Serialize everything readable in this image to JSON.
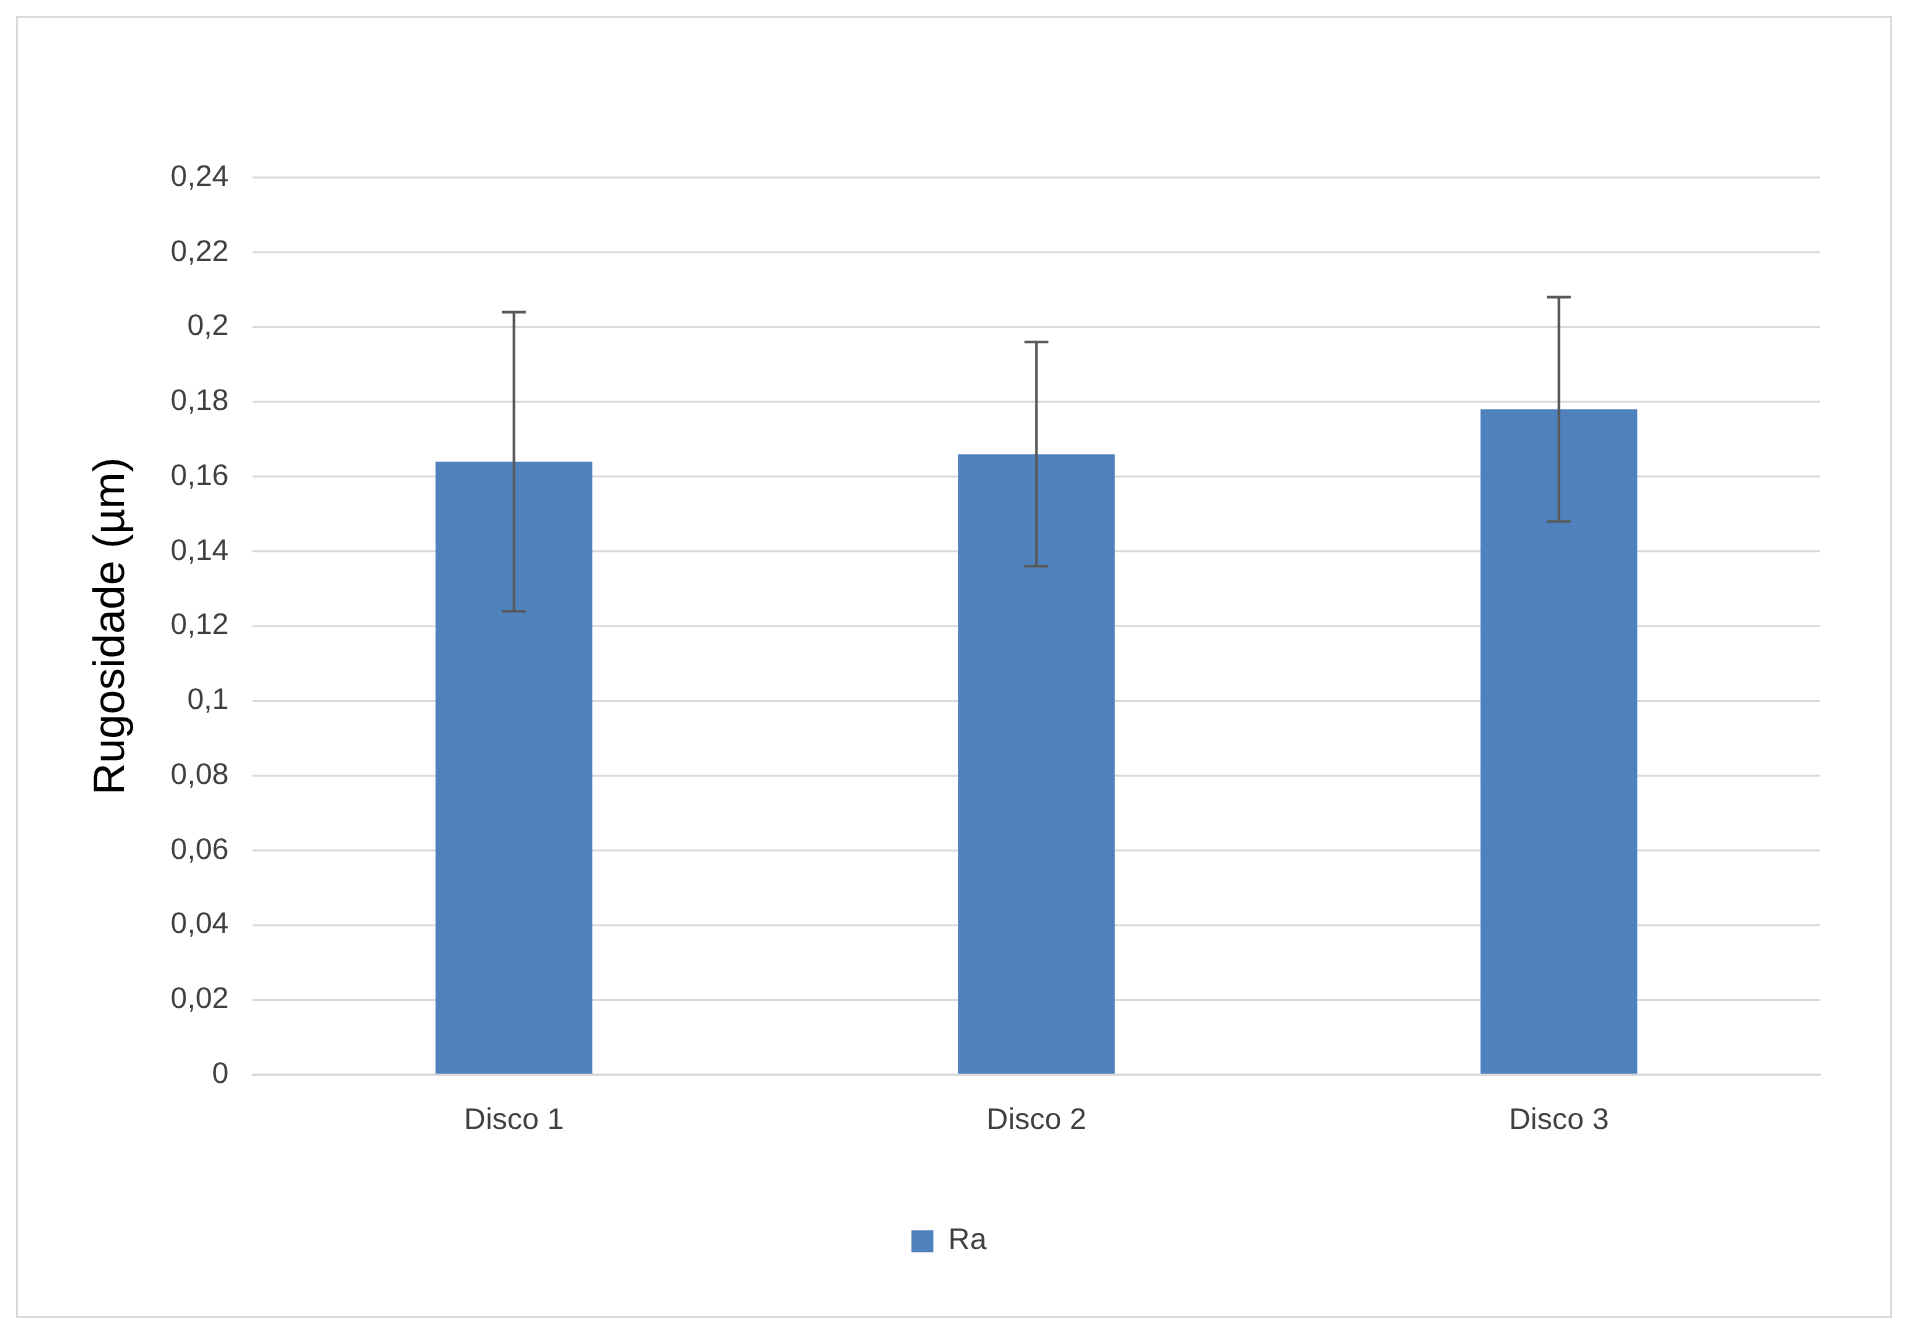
{
  "chart_data": {
    "type": "bar",
    "ylabel": "Rugosidade (µm)",
    "categories": [
      "Disco 1",
      "Disco 2",
      "Disco 3"
    ],
    "series": [
      {
        "name": "Ra",
        "color": "#4f81bd",
        "values": [
          0.164,
          0.166,
          0.178
        ],
        "errors": [
          0.04,
          0.03,
          0.03
        ]
      }
    ],
    "ylim": [
      0,
      0.24
    ],
    "yticks": [
      {
        "value": 0,
        "label": "0"
      },
      {
        "value": 0.02,
        "label": "0,02"
      },
      {
        "value": 0.04,
        "label": "0,04"
      },
      {
        "value": 0.06,
        "label": "0,06"
      },
      {
        "value": 0.08,
        "label": "0,08"
      },
      {
        "value": 0.1,
        "label": "0,1"
      },
      {
        "value": 0.12,
        "label": "0,12"
      },
      {
        "value": 0.14,
        "label": "0,14"
      },
      {
        "value": 0.16,
        "label": "0,16"
      },
      {
        "value": 0.18,
        "label": "0,18"
      },
      {
        "value": 0.2,
        "label": "0,2"
      },
      {
        "value": 0.22,
        "label": "0,22"
      },
      {
        "value": 0.24,
        "label": "0,24"
      }
    ],
    "grid": "y",
    "legend": "bottom"
  }
}
